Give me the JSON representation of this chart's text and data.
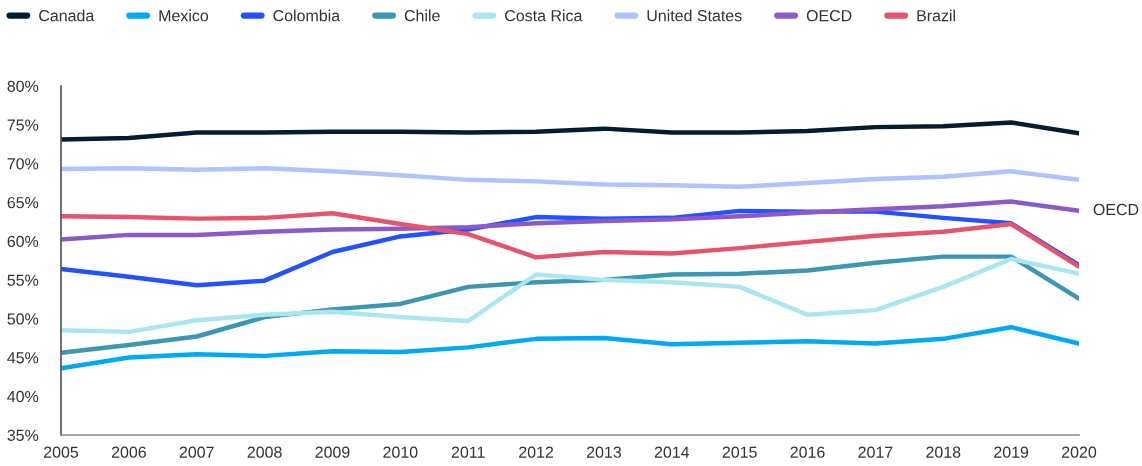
{
  "chart_data": {
    "type": "line",
    "x": [
      2005,
      2006,
      2007,
      2008,
      2009,
      2010,
      2011,
      2012,
      2013,
      2014,
      2015,
      2016,
      2017,
      2018,
      2019,
      2020
    ],
    "series": [
      {
        "name": "Canada",
        "color": "#051c2c",
        "values": [
          73.1,
          73.3,
          74.0,
          74.0,
          74.1,
          74.1,
          74.0,
          74.1,
          74.5,
          74.0,
          74.0,
          74.2,
          74.7,
          74.8,
          75.3,
          73.9
        ]
      },
      {
        "name": "Mexico",
        "color": "#00a9f4",
        "values": [
          43.6,
          45.0,
          45.4,
          45.2,
          45.8,
          45.7,
          46.3,
          47.4,
          47.5,
          46.7,
          46.9,
          47.1,
          46.8,
          47.4,
          48.9,
          46.8
        ]
      },
      {
        "name": "Colombia",
        "color": "#2251ff",
        "values": [
          56.4,
          55.4,
          54.3,
          54.9,
          58.6,
          60.6,
          61.5,
          63.1,
          62.9,
          63.0,
          63.9,
          63.8,
          63.8,
          63.0,
          62.3,
          56.9
        ]
      },
      {
        "name": "Chile",
        "color": "#3c96b4",
        "values": [
          45.6,
          46.6,
          47.7,
          50.2,
          51.2,
          51.9,
          54.1,
          54.7,
          55.0,
          55.7,
          55.8,
          56.2,
          57.2,
          58.0,
          58.0,
          52.6
        ]
      },
      {
        "name": "Costa Rica",
        "color": "#aae6f0",
        "values": [
          48.5,
          48.3,
          49.8,
          50.5,
          50.9,
          50.2,
          49.7,
          55.7,
          55.0,
          54.7,
          54.1,
          50.5,
          51.1,
          54.1,
          57.7,
          55.8
        ]
      },
      {
        "name": "United States",
        "color": "#afc3ff",
        "values": [
          69.3,
          69.4,
          69.2,
          69.4,
          69.0,
          68.5,
          67.9,
          67.7,
          67.3,
          67.2,
          67.0,
          67.5,
          68.0,
          68.3,
          69.0,
          67.9
        ]
      },
      {
        "name": "OECD",
        "color": "#8c5ac8",
        "values": [
          60.2,
          60.8,
          60.8,
          61.2,
          61.5,
          61.6,
          61.8,
          62.3,
          62.6,
          62.8,
          63.2,
          63.7,
          64.1,
          64.5,
          65.1,
          63.9
        ]
      },
      {
        "name": "Brazil",
        "color": "#e5546c",
        "values": [
          63.2,
          63.1,
          62.9,
          63.0,
          63.6,
          62.2,
          60.9,
          57.9,
          58.6,
          58.4,
          59.1,
          59.9,
          60.7,
          61.2,
          62.2,
          56.7
        ]
      }
    ],
    "xlim": [
      2005,
      2020
    ],
    "xticks": [
      2005,
      2006,
      2007,
      2008,
      2009,
      2010,
      2011,
      2012,
      2013,
      2014,
      2015,
      2016,
      2017,
      2018,
      2019,
      2020
    ],
    "ylim": [
      35,
      80
    ],
    "yticks": [
      {
        "value": 35,
        "label": "35%"
      },
      {
        "value": 40,
        "label": "40%"
      },
      {
        "value": 45,
        "label": "45%"
      },
      {
        "value": 50,
        "label": "50%"
      },
      {
        "value": 55,
        "label": "55%"
      },
      {
        "value": 60,
        "label": "60%"
      },
      {
        "value": 65,
        "label": "65%"
      },
      {
        "value": 70,
        "label": "70%"
      },
      {
        "value": 75,
        "label": "75%"
      },
      {
        "value": 80,
        "label": "80%"
      }
    ],
    "annotations": [
      {
        "text": "OECD",
        "x": 2020,
        "y": 63.9
      }
    ],
    "grid": false,
    "legend": "top",
    "marker": "none",
    "line_style": "solid"
  }
}
